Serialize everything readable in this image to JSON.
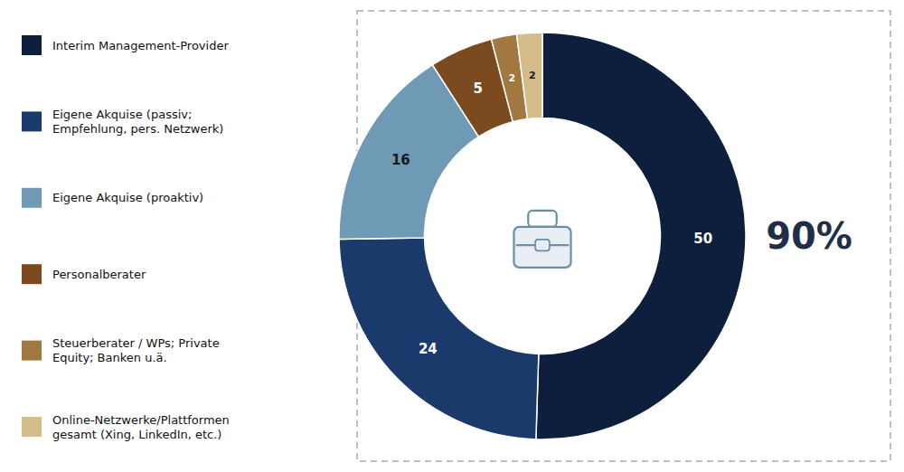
{
  "chart_data": {
    "type": "donut",
    "categories": [
      "Interim Management-Provider",
      "Eigene Akquise (passiv;\nEmpfehlung, pers. Netzwerk)",
      "Eigene Akquise (proaktiv)",
      "Personalberater",
      "Steuerberater / WPs; Private\nEquity; Banken u.ä.",
      "Online-Netzwerke/Plattformen\ngesamt (Xing, LinkedIn, etc.)"
    ],
    "values": [
      50,
      24,
      16,
      5,
      2,
      2
    ],
    "colors": [
      "#0d1f3c",
      "#1a3a6b",
      "#6e9ab5",
      "#7b4a1e",
      "#a07840",
      "#d4bc8a"
    ],
    "data_labels": true,
    "legend": "left",
    "annotation": "90%"
  }
}
